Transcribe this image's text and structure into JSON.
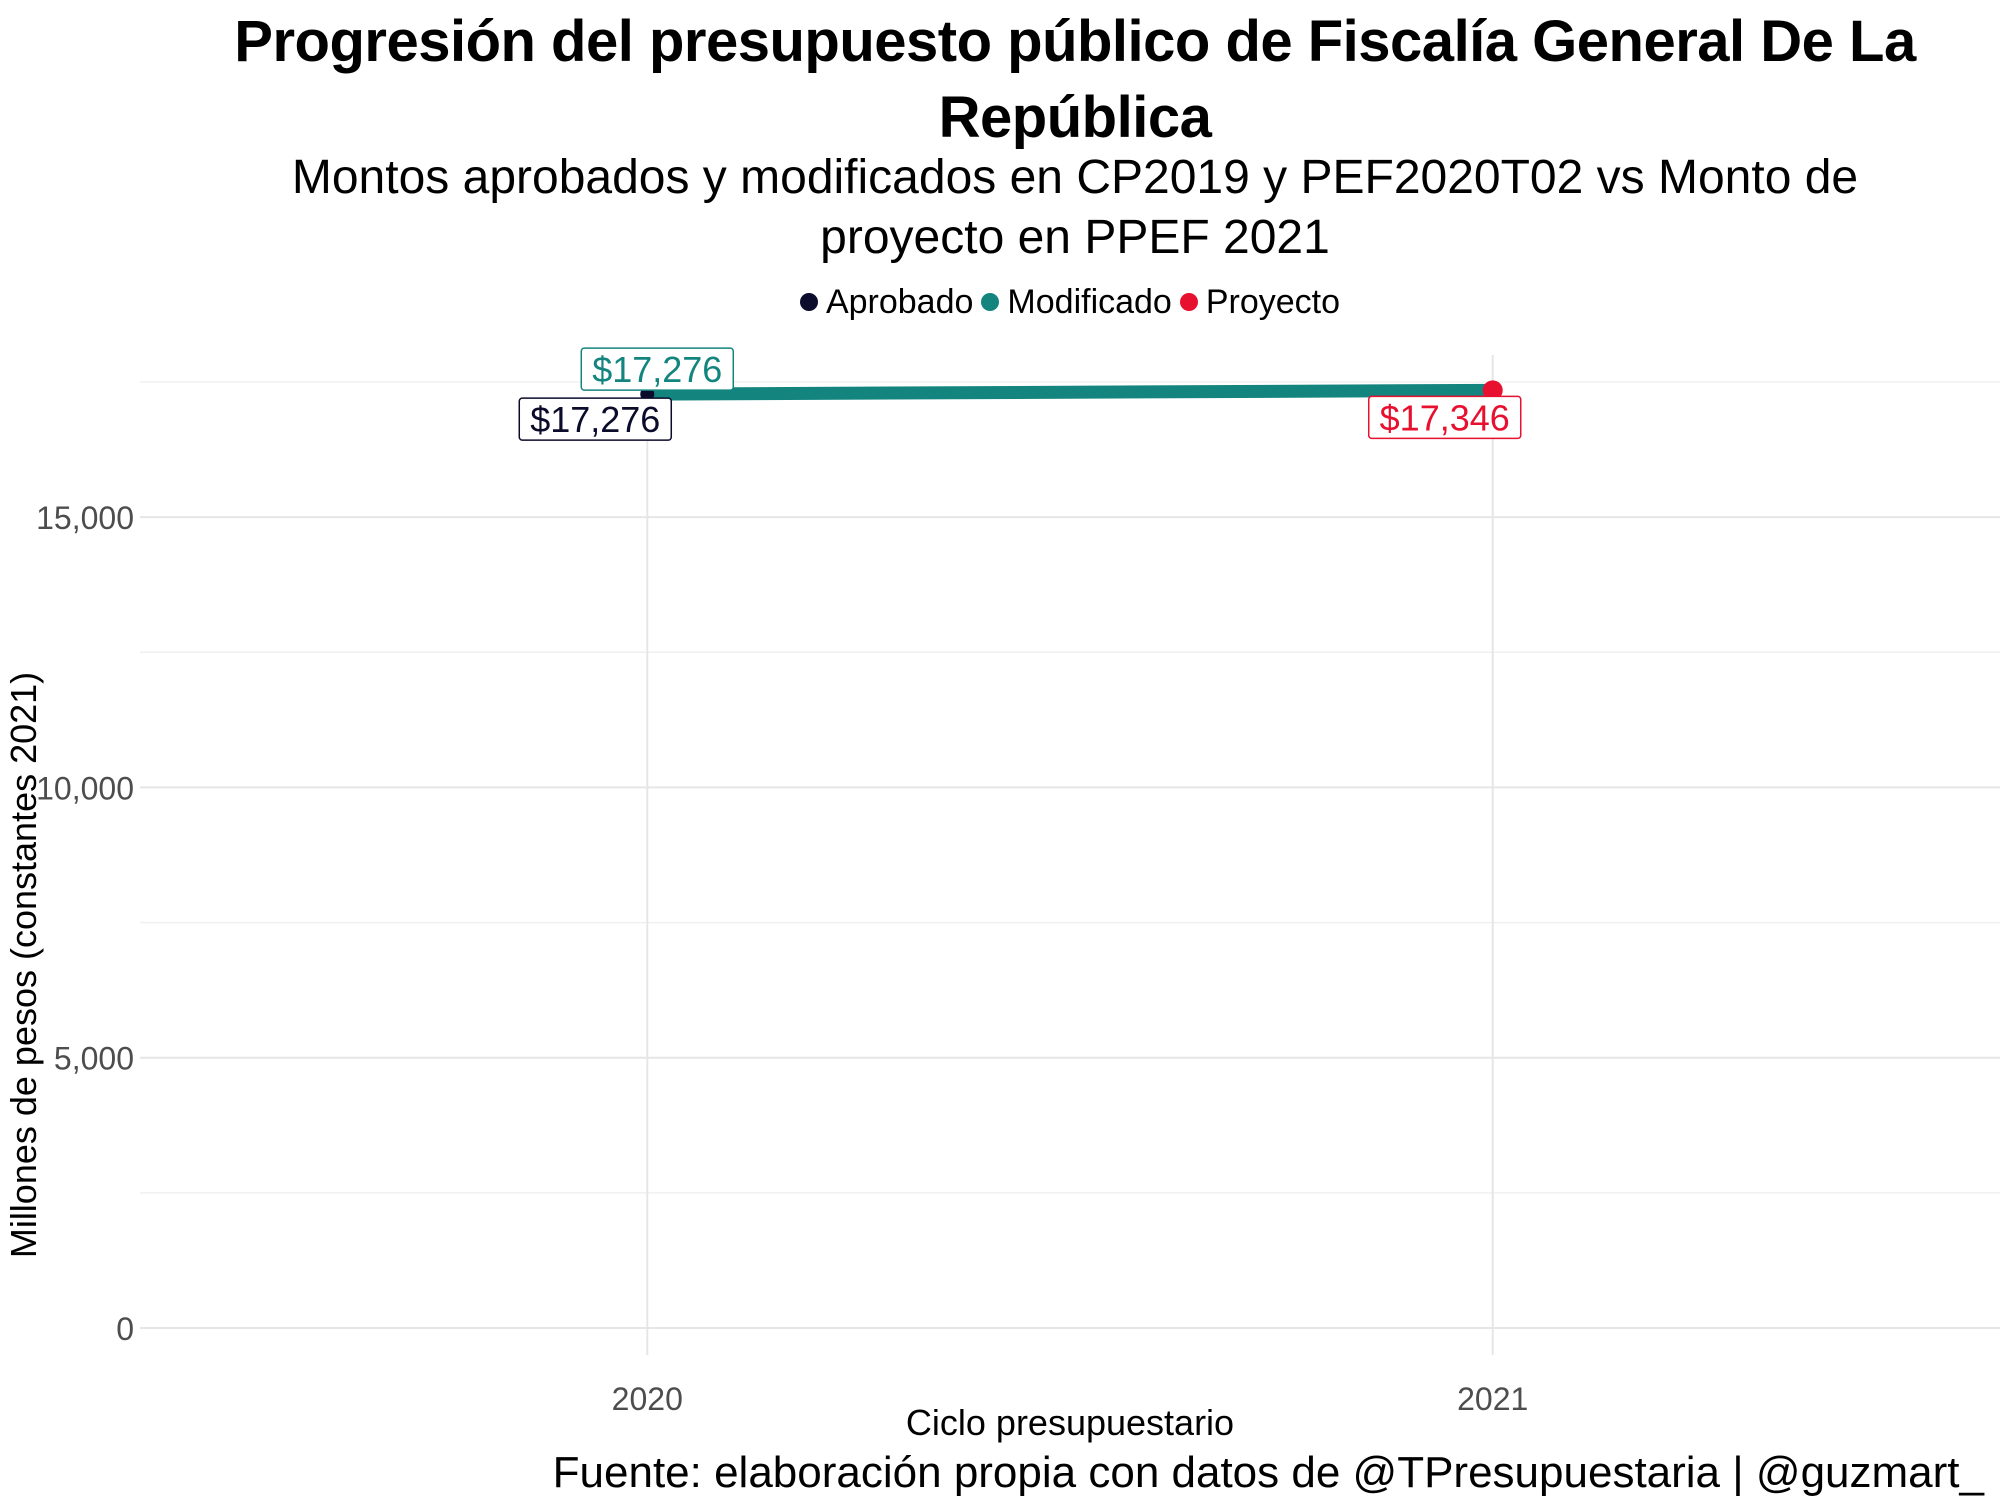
{
  "title": "Progresión del presupuesto público de Fiscalía General De La República",
  "subtitle": "Montos aprobados y modificados en CP2019 y PEF2020T02 vs Monto de proyecto en PPEF 2021",
  "caption": "Fuente: elaboración propia con datos de @TPresupuestaria | @guzmart_",
  "colors": {
    "aprobado": "#0b0b2b",
    "modificado": "#14847f",
    "proyecto": "#e8102f",
    "grid": "#e6e6e6",
    "axis_text": "#4d4d4d"
  },
  "legend": [
    {
      "label": "Aprobado",
      "color": "#0b0b2b"
    },
    {
      "label": "Modificado",
      "color": "#14847f"
    },
    {
      "label": "Proyecto",
      "color": "#e8102f"
    }
  ],
  "chart_data": {
    "type": "line",
    "title": "Progresión del presupuesto público de Fiscalía General De La República",
    "xlabel": "Ciclo presupuestario",
    "ylabel": "Millones de pesos (constantes 2021)",
    "x_ticks": [
      "2020",
      "2021"
    ],
    "y_ticks": [
      0,
      5000,
      10000,
      15000
    ],
    "y_tick_labels": [
      "0",
      "5,000",
      "10,000",
      "15,000"
    ],
    "xlim": [
      2019.4,
      2021.6
    ],
    "ylim": [
      -500,
      18000
    ],
    "grid": true,
    "legend_position": "top",
    "series": [
      {
        "name": "Aprobado",
        "x": [
          2020
        ],
        "values": [
          17276
        ],
        "labels": [
          "$17,276"
        ]
      },
      {
        "name": "Modificado",
        "x": [
          2020,
          2021
        ],
        "values": [
          17276,
          17346
        ],
        "labels": [
          "$17,276"
        ]
      },
      {
        "name": "Proyecto",
        "x": [
          2021
        ],
        "values": [
          17346
        ],
        "labels": [
          "$17,346"
        ]
      }
    ]
  }
}
